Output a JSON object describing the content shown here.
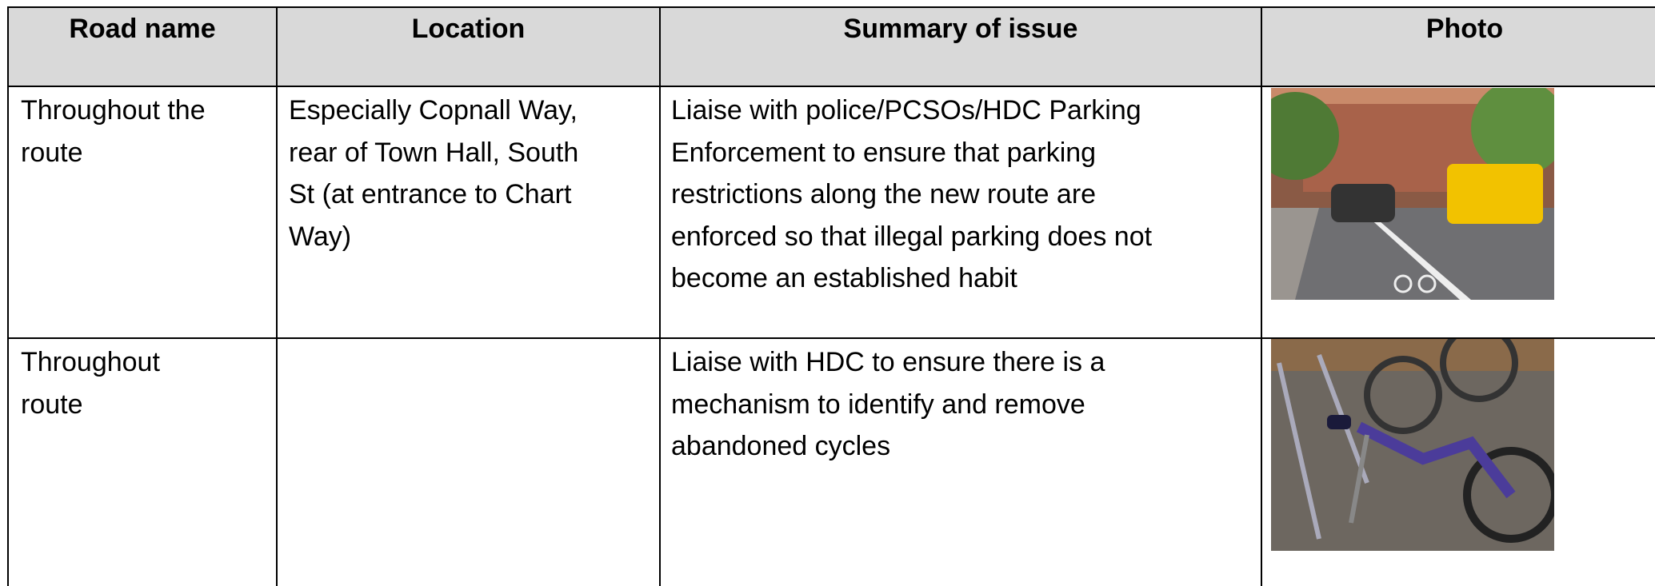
{
  "table": {
    "header": [
      "Road name",
      "Location",
      "Summary of issue",
      "Photo"
    ],
    "rows": [
      {
        "road_name": [
          "Throughout the",
          "route"
        ],
        "location": [
          "Especially Copnall Way,",
          "rear of Town Hall, South",
          "St (at entrance to Chart",
          "Way)"
        ],
        "summary": [
          "Liaise with police/PCSOs/HDC Parking",
          "Enforcement to ensure that parking",
          "restrictions along the new route are",
          "enforced so that illegal parking does not",
          "become an established habit"
        ]
      },
      {
        "road_name": [
          "Throughout",
          "route"
        ],
        "summary": [
          "Liaise with HDC to ensure there is a",
          "mechanism to identify and remove",
          "abandoned cycles"
        ]
      }
    ]
  }
}
